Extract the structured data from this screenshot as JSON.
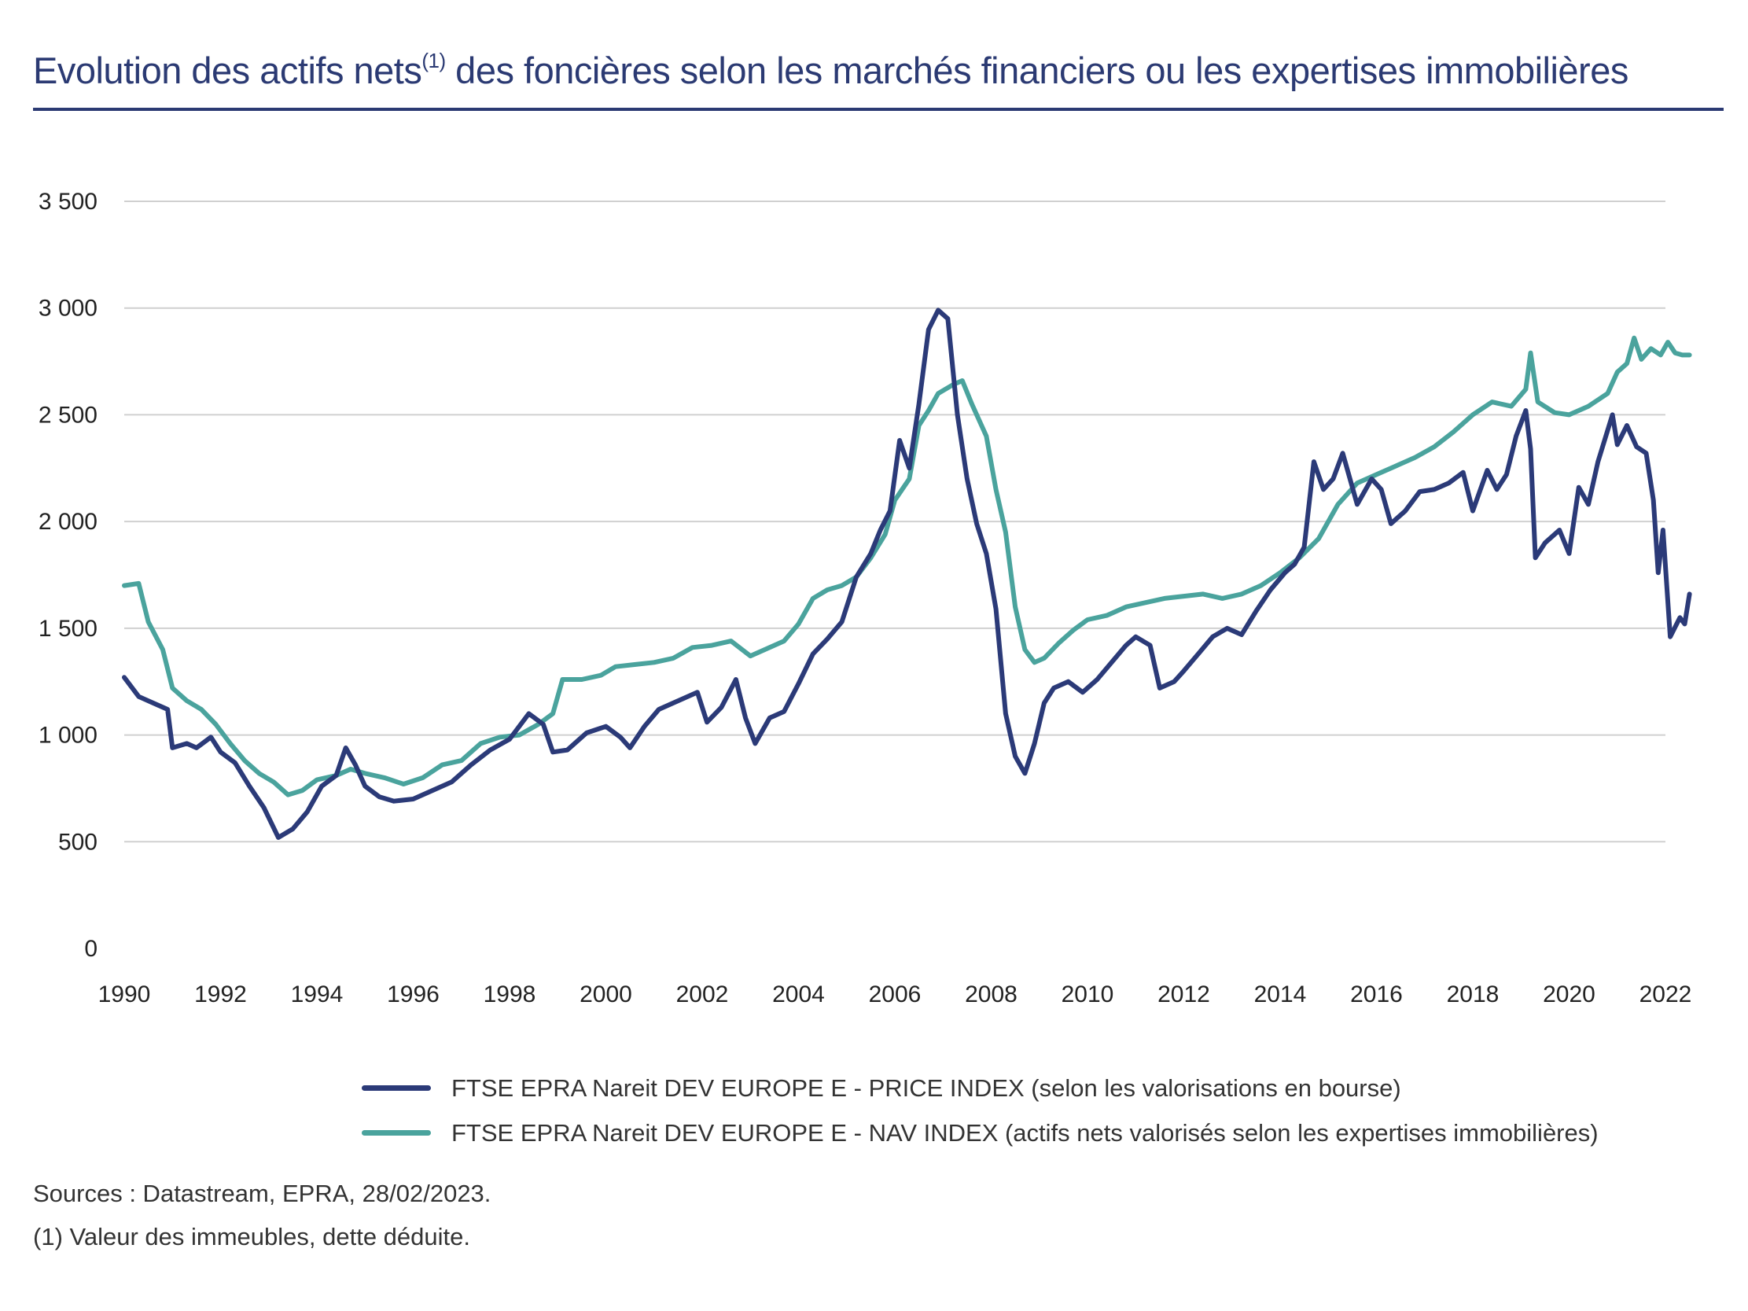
{
  "header": {
    "title_main": "Evolution des actifs nets",
    "title_sup": "(1)",
    "title_rest": " des foncières selon les marchés financiers ou les expertises immobilières"
  },
  "colors": {
    "title": "#2b3a73",
    "price_series": "#2b3a78",
    "nav_series": "#4aa39d",
    "grid": "#d0d0d0"
  },
  "chart_data": {
    "type": "line",
    "title": "Evolution des actifs nets(1) des foncières selon les marchés financiers ou les expertises immobilières",
    "xlabel": "",
    "ylabel": "",
    "xlim": [
      1990,
      2022
    ],
    "ylim": [
      0,
      3500
    ],
    "grid": true,
    "legend_position": "bottom",
    "x_ticks": [
      1990,
      1992,
      1994,
      1996,
      1998,
      2000,
      2002,
      2004,
      2006,
      2008,
      2010,
      2012,
      2014,
      2016,
      2018,
      2020,
      2022
    ],
    "x_tick_labels": [
      "1990",
      "1992",
      "1994",
      "1996",
      "1998",
      "2000",
      "2002",
      "2004",
      "2006",
      "2008",
      "2010",
      "2012",
      "2014",
      "2016",
      "2018",
      "2020",
      "2022"
    ],
    "y_ticks": [
      0,
      500,
      1000,
      1500,
      2000,
      2500,
      3000,
      3500
    ],
    "y_tick_labels": [
      "0",
      "500",
      "1 000",
      "1 500",
      "2 000",
      "2 500",
      "3 000",
      "3 500"
    ],
    "series": [
      {
        "name": "FTSE EPRA Nareit DEV EUROPE E - PRICE INDEX (selon les valorisations en bourse)",
        "color": "#2b3a78",
        "points": [
          [
            1990.0,
            1270
          ],
          [
            1990.3,
            1180
          ],
          [
            1990.6,
            1150
          ],
          [
            1990.9,
            1120
          ],
          [
            1991.0,
            940
          ],
          [
            1991.3,
            960
          ],
          [
            1991.5,
            940
          ],
          [
            1991.8,
            990
          ],
          [
            1992.0,
            920
          ],
          [
            1992.3,
            870
          ],
          [
            1992.6,
            760
          ],
          [
            1992.9,
            660
          ],
          [
            1993.2,
            520
          ],
          [
            1993.5,
            560
          ],
          [
            1993.8,
            640
          ],
          [
            1994.1,
            760
          ],
          [
            1994.4,
            810
          ],
          [
            1994.6,
            940
          ],
          [
            1994.8,
            860
          ],
          [
            1995.0,
            760
          ],
          [
            1995.3,
            710
          ],
          [
            1995.6,
            690
          ],
          [
            1996.0,
            700
          ],
          [
            1996.4,
            740
          ],
          [
            1996.8,
            780
          ],
          [
            1997.2,
            860
          ],
          [
            1997.6,
            930
          ],
          [
            1998.0,
            980
          ],
          [
            1998.4,
            1100
          ],
          [
            1998.7,
            1050
          ],
          [
            1998.9,
            920
          ],
          [
            1999.2,
            930
          ],
          [
            1999.6,
            1010
          ],
          [
            2000.0,
            1040
          ],
          [
            2000.3,
            990
          ],
          [
            2000.5,
            940
          ],
          [
            2000.8,
            1040
          ],
          [
            2001.1,
            1120
          ],
          [
            2001.5,
            1160
          ],
          [
            2001.9,
            1200
          ],
          [
            2002.1,
            1060
          ],
          [
            2002.4,
            1130
          ],
          [
            2002.7,
            1260
          ],
          [
            2002.9,
            1080
          ],
          [
            2003.1,
            960
          ],
          [
            2003.4,
            1080
          ],
          [
            2003.7,
            1110
          ],
          [
            2004.0,
            1240
          ],
          [
            2004.3,
            1380
          ],
          [
            2004.6,
            1450
          ],
          [
            2004.9,
            1530
          ],
          [
            2005.2,
            1740
          ],
          [
            2005.5,
            1850
          ],
          [
            2005.7,
            1960
          ],
          [
            2005.9,
            2050
          ],
          [
            2006.1,
            2380
          ],
          [
            2006.3,
            2250
          ],
          [
            2006.5,
            2550
          ],
          [
            2006.7,
            2900
          ],
          [
            2006.9,
            2990
          ],
          [
            2007.1,
            2950
          ],
          [
            2007.3,
            2500
          ],
          [
            2007.5,
            2200
          ],
          [
            2007.7,
            1990
          ],
          [
            2007.9,
            1850
          ],
          [
            2008.1,
            1590
          ],
          [
            2008.3,
            1100
          ],
          [
            2008.5,
            900
          ],
          [
            2008.7,
            820
          ],
          [
            2008.9,
            960
          ],
          [
            2009.1,
            1150
          ],
          [
            2009.3,
            1220
          ],
          [
            2009.6,
            1250
          ],
          [
            2009.9,
            1200
          ],
          [
            2010.2,
            1260
          ],
          [
            2010.5,
            1340
          ],
          [
            2010.8,
            1420
          ],
          [
            2011.0,
            1460
          ],
          [
            2011.3,
            1420
          ],
          [
            2011.5,
            1220
          ],
          [
            2011.8,
            1250
          ],
          [
            2012.0,
            1300
          ],
          [
            2012.3,
            1380
          ],
          [
            2012.6,
            1460
          ],
          [
            2012.9,
            1500
          ],
          [
            2013.2,
            1470
          ],
          [
            2013.5,
            1580
          ],
          [
            2013.8,
            1680
          ],
          [
            2014.1,
            1760
          ],
          [
            2014.3,
            1800
          ],
          [
            2014.5,
            1880
          ],
          [
            2014.7,
            2280
          ],
          [
            2014.9,
            2150
          ],
          [
            2015.1,
            2200
          ],
          [
            2015.3,
            2320
          ],
          [
            2015.6,
            2080
          ],
          [
            2015.9,
            2200
          ],
          [
            2016.1,
            2150
          ],
          [
            2016.3,
            1990
          ],
          [
            2016.6,
            2050
          ],
          [
            2016.9,
            2140
          ],
          [
            2017.2,
            2150
          ],
          [
            2017.5,
            2180
          ],
          [
            2017.8,
            2230
          ],
          [
            2018.0,
            2050
          ],
          [
            2018.3,
            2240
          ],
          [
            2018.5,
            2150
          ],
          [
            2018.7,
            2220
          ],
          [
            2018.9,
            2400
          ],
          [
            2019.1,
            2520
          ],
          [
            2019.2,
            2340
          ],
          [
            2019.3,
            1830
          ],
          [
            2019.5,
            1900
          ],
          [
            2019.8,
            1960
          ],
          [
            2020.0,
            1850
          ],
          [
            2020.2,
            2160
          ],
          [
            2020.4,
            2080
          ],
          [
            2020.6,
            2280
          ],
          [
            2020.9,
            2500
          ],
          [
            2021.0,
            2360
          ],
          [
            2021.2,
            2450
          ],
          [
            2021.4,
            2350
          ],
          [
            2021.6,
            2320
          ],
          [
            2021.75,
            2100
          ],
          [
            2021.85,
            1760
          ],
          [
            2021.95,
            1960
          ],
          [
            2022.1,
            1460
          ],
          [
            2022.3,
            1550
          ],
          [
            2022.4,
            1520
          ],
          [
            2022.5,
            1660
          ]
        ]
      },
      {
        "name": "FTSE EPRA Nareit DEV EUROPE E - NAV INDEX  (actifs nets valorisés selon les expertises immobilières)",
        "color": "#4aa39d",
        "points": [
          [
            1990.0,
            1700
          ],
          [
            1990.3,
            1710
          ],
          [
            1990.5,
            1530
          ],
          [
            1990.8,
            1400
          ],
          [
            1991.0,
            1220
          ],
          [
            1991.3,
            1160
          ],
          [
            1991.6,
            1120
          ],
          [
            1991.9,
            1050
          ],
          [
            1992.2,
            960
          ],
          [
            1992.5,
            880
          ],
          [
            1992.8,
            820
          ],
          [
            1993.1,
            780
          ],
          [
            1993.4,
            720
          ],
          [
            1993.7,
            740
          ],
          [
            1994.0,
            790
          ],
          [
            1994.4,
            810
          ],
          [
            1994.7,
            840
          ],
          [
            1995.0,
            820
          ],
          [
            1995.4,
            800
          ],
          [
            1995.8,
            770
          ],
          [
            1996.2,
            800
          ],
          [
            1996.6,
            860
          ],
          [
            1997.0,
            880
          ],
          [
            1997.4,
            960
          ],
          [
            1997.8,
            990
          ],
          [
            1998.2,
            1000
          ],
          [
            1998.6,
            1050
          ],
          [
            1998.9,
            1100
          ],
          [
            1999.1,
            1260
          ],
          [
            1999.5,
            1260
          ],
          [
            1999.9,
            1280
          ],
          [
            2000.2,
            1320
          ],
          [
            2000.6,
            1330
          ],
          [
            2001.0,
            1340
          ],
          [
            2001.4,
            1360
          ],
          [
            2001.8,
            1410
          ],
          [
            2002.2,
            1420
          ],
          [
            2002.6,
            1440
          ],
          [
            2003.0,
            1370
          ],
          [
            2003.3,
            1400
          ],
          [
            2003.7,
            1440
          ],
          [
            2004.0,
            1520
          ],
          [
            2004.3,
            1640
          ],
          [
            2004.6,
            1680
          ],
          [
            2004.9,
            1700
          ],
          [
            2005.2,
            1740
          ],
          [
            2005.5,
            1830
          ],
          [
            2005.8,
            1940
          ],
          [
            2006.0,
            2100
          ],
          [
            2006.3,
            2200
          ],
          [
            2006.5,
            2450
          ],
          [
            2006.7,
            2520
          ],
          [
            2006.9,
            2600
          ],
          [
            2007.2,
            2640
          ],
          [
            2007.4,
            2660
          ],
          [
            2007.6,
            2550
          ],
          [
            2007.9,
            2400
          ],
          [
            2008.1,
            2150
          ],
          [
            2008.3,
            1950
          ],
          [
            2008.5,
            1600
          ],
          [
            2008.7,
            1400
          ],
          [
            2008.9,
            1340
          ],
          [
            2009.1,
            1360
          ],
          [
            2009.4,
            1430
          ],
          [
            2009.7,
            1490
          ],
          [
            2010.0,
            1540
          ],
          [
            2010.4,
            1560
          ],
          [
            2010.8,
            1600
          ],
          [
            2011.2,
            1620
          ],
          [
            2011.6,
            1640
          ],
          [
            2012.0,
            1650
          ],
          [
            2012.4,
            1660
          ],
          [
            2012.8,
            1640
          ],
          [
            2013.2,
            1660
          ],
          [
            2013.6,
            1700
          ],
          [
            2014.0,
            1760
          ],
          [
            2014.4,
            1830
          ],
          [
            2014.8,
            1920
          ],
          [
            2015.2,
            2080
          ],
          [
            2015.6,
            2180
          ],
          [
            2016.0,
            2220
          ],
          [
            2016.4,
            2260
          ],
          [
            2016.8,
            2300
          ],
          [
            2017.2,
            2350
          ],
          [
            2017.6,
            2420
          ],
          [
            2018.0,
            2500
          ],
          [
            2018.4,
            2560
          ],
          [
            2018.8,
            2540
          ],
          [
            2019.1,
            2620
          ],
          [
            2019.2,
            2790
          ],
          [
            2019.35,
            2560
          ],
          [
            2019.7,
            2510
          ],
          [
            2020.0,
            2500
          ],
          [
            2020.4,
            2540
          ],
          [
            2020.8,
            2600
          ],
          [
            2021.0,
            2700
          ],
          [
            2021.2,
            2740
          ],
          [
            2021.35,
            2860
          ],
          [
            2021.5,
            2760
          ],
          [
            2021.7,
            2810
          ],
          [
            2021.9,
            2780
          ],
          [
            2022.05,
            2840
          ],
          [
            2022.2,
            2790
          ],
          [
            2022.35,
            2780
          ],
          [
            2022.5,
            2780
          ]
        ]
      }
    ]
  },
  "legend": {
    "price_label": "FTSE EPRA Nareit DEV EUROPE E - PRICE INDEX (selon les valorisations en bourse)",
    "nav_label": "FTSE EPRA Nareit DEV EUROPE E - NAV INDEX  (actifs nets valorisés selon les expertises immobilières)"
  },
  "footnotes": {
    "sources": "Sources : Datastream, EPRA, 28/02/2023.",
    "note1": "(1) Valeur des immeubles, dette déduite."
  }
}
